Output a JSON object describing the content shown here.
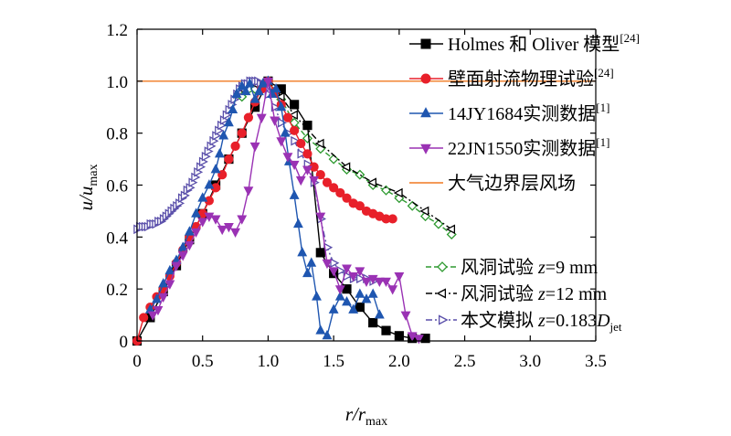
{
  "chart_data": {
    "type": "line",
    "title": "",
    "xlabel": {
      "main": "r/r",
      "sub": "max"
    },
    "ylabel": {
      "main": "u/u",
      "sub": "max"
    },
    "xlim": [
      0,
      3.5
    ],
    "ylim": [
      0,
      1.2
    ],
    "xticks": [
      0,
      0.5,
      1.0,
      1.5,
      2.0,
      2.5,
      3.0,
      3.5
    ],
    "xtick_labels": [
      "0",
      "0.5",
      "1.0",
      "1.5",
      "2.0",
      "2.5",
      "3.0",
      "3.5"
    ],
    "yticks": [
      0,
      0.2,
      0.4,
      0.6,
      0.8,
      1.0,
      1.2
    ],
    "ytick_labels": [
      "0",
      "0.2",
      "0.4",
      "0.6",
      "0.8",
      "1.0",
      "1.2"
    ],
    "grid": false,
    "legend_position": "top-right",
    "series": [
      {
        "name": "Holmes 和 Oliver 模型",
        "sup": "[24]",
        "color": "#000000",
        "marker": "square",
        "filled": true,
        "dash": "",
        "x": [
          0,
          0.1,
          0.2,
          0.3,
          0.4,
          0.5,
          0.6,
          0.7,
          0.8,
          0.9,
          1.0,
          1.1,
          1.2,
          1.3,
          1.4,
          1.5,
          1.6,
          1.7,
          1.8,
          1.9,
          2.0,
          2.1,
          2.2
        ],
        "y": [
          0,
          0.09,
          0.19,
          0.29,
          0.39,
          0.49,
          0.6,
          0.7,
          0.8,
          0.9,
          1.0,
          0.97,
          0.91,
          0.83,
          0.34,
          0.26,
          0.2,
          0.13,
          0.07,
          0.04,
          0.02,
          0.01,
          0.01
        ]
      },
      {
        "name": "壁面射流物理试验",
        "sup": "[24]",
        "color": "#e8202a",
        "marker": "circle",
        "filled": true,
        "dash": "",
        "x": [
          0,
          0.05,
          0.1,
          0.15,
          0.2,
          0.25,
          0.3,
          0.35,
          0.4,
          0.45,
          0.5,
          0.55,
          0.6,
          0.65,
          0.7,
          0.75,
          0.8,
          0.85,
          0.9,
          0.95,
          1.0,
          1.05,
          1.1,
          1.15,
          1.2,
          1.25,
          1.3,
          1.35,
          1.4,
          1.45,
          1.5,
          1.55,
          1.6,
          1.65,
          1.7,
          1.75,
          1.8,
          1.85,
          1.9,
          1.95
        ],
        "y": [
          0,
          0.09,
          0.13,
          0.17,
          0.2,
          0.25,
          0.3,
          0.35,
          0.4,
          0.44,
          0.49,
          0.54,
          0.59,
          0.64,
          0.7,
          0.75,
          0.8,
          0.86,
          0.92,
          0.97,
          1.0,
          0.96,
          0.91,
          0.86,
          0.81,
          0.76,
          0.72,
          0.67,
          0.64,
          0.61,
          0.59,
          0.57,
          0.55,
          0.53,
          0.52,
          0.5,
          0.49,
          0.48,
          0.47,
          0.47
        ]
      },
      {
        "name": "14JY1684实测数据",
        "sup": "[1]",
        "color": "#1f56b0",
        "marker": "triangle-up",
        "filled": true,
        "dash": "",
        "x": [
          0.1,
          0.15,
          0.2,
          0.25,
          0.3,
          0.35,
          0.4,
          0.45,
          0.5,
          0.55,
          0.6,
          0.63,
          0.66,
          0.7,
          0.73,
          0.76,
          0.8,
          0.83,
          0.86,
          0.9,
          0.93,
          0.96,
          1.0,
          1.03,
          1.06,
          1.1,
          1.13,
          1.16,
          1.2,
          1.23,
          1.26,
          1.3,
          1.33,
          1.37,
          1.4,
          1.45,
          1.5,
          1.55,
          1.6,
          1.65,
          1.7,
          1.75,
          1.8,
          1.85
        ],
        "y": [
          0.12,
          0.16,
          0.22,
          0.27,
          0.31,
          0.36,
          0.42,
          0.49,
          0.55,
          0.6,
          0.66,
          0.72,
          0.79,
          0.84,
          0.89,
          0.95,
          0.98,
          0.96,
          0.99,
          0.93,
          0.96,
          0.99,
          1.0,
          0.95,
          0.97,
          0.9,
          0.8,
          0.69,
          0.56,
          0.45,
          0.34,
          0.26,
          0.3,
          0.17,
          0.04,
          0.02,
          0.12,
          0.17,
          0.15,
          0.12,
          0.18,
          0.16,
          0.18,
          0.1
        ]
      },
      {
        "name": "22JN1550实测数据",
        "sup": "[1]",
        "color": "#9a32b4",
        "marker": "triangle-down",
        "filled": true,
        "dash": "",
        "x": [
          0.12,
          0.16,
          0.2,
          0.25,
          0.3,
          0.35,
          0.4,
          0.45,
          0.5,
          0.55,
          0.6,
          0.65,
          0.7,
          0.75,
          0.8,
          0.85,
          0.9,
          0.95,
          1.0,
          1.05,
          1.1,
          1.15,
          1.2,
          1.25,
          1.3,
          1.35,
          1.4,
          1.45,
          1.5,
          1.55,
          1.6,
          1.65,
          1.7,
          1.75,
          1.8,
          1.85,
          1.9,
          1.95,
          2.0,
          2.05,
          2.1,
          2.15
        ],
        "y": [
          0.1,
          0.12,
          0.17,
          0.22,
          0.29,
          0.33,
          0.37,
          0.42,
          0.46,
          0.48,
          0.47,
          0.43,
          0.44,
          0.42,
          0.47,
          0.58,
          0.75,
          0.86,
          1.0,
          0.85,
          0.77,
          0.71,
          0.68,
          0.62,
          0.66,
          0.62,
          0.48,
          0.3,
          0.27,
          0.2,
          0.28,
          0.25,
          0.27,
          0.23,
          0.24,
          0.23,
          0.23,
          0.2,
          0.25,
          0.1,
          0.02,
          0.01
        ]
      }
    ],
    "reference_lines": [
      {
        "name": "大气边界层风场",
        "y": 1.0,
        "color": "#f07820"
      }
    ],
    "series_secondary": [
      {
        "name_prefix": "风洞试验 ",
        "var": "z",
        "value": "=9 mm",
        "color": "#2e9a30",
        "marker": "diamond",
        "filled": false,
        "dash": "6,3",
        "x": [
          0.8,
          0.9,
          1.0,
          1.1,
          1.2,
          1.3,
          1.4,
          1.5,
          1.6,
          1.7,
          1.8,
          1.9,
          2.0,
          2.1,
          2.2,
          2.3,
          2.4
        ],
        "y": [
          0.94,
          0.97,
          1.0,
          0.93,
          0.84,
          0.78,
          0.74,
          0.7,
          0.66,
          0.64,
          0.6,
          0.58,
          0.55,
          0.52,
          0.48,
          0.45,
          0.41
        ]
      },
      {
        "name_prefix": "风洞试验 ",
        "var": "z",
        "value": "=12 mm",
        "color": "#000000",
        "marker": "triangle-left",
        "filled": false,
        "dash": "7,3,2,3",
        "x": [
          0.8,
          0.9,
          1.0,
          1.1,
          1.2,
          1.4,
          1.6,
          1.8,
          2.0,
          2.2,
          2.4
        ],
        "y": [
          0.97,
          0.99,
          1.0,
          0.94,
          0.87,
          0.76,
          0.67,
          0.61,
          0.57,
          0.5,
          0.43
        ]
      },
      {
        "name_prefix": "本文模拟 ",
        "var": "z",
        "value": "=0.183",
        "var2": "D",
        "var2_sub": "jet",
        "color": "#5a4faa",
        "marker": "triangle-right",
        "filled": false,
        "dash": "7,3,2,3",
        "x": [
          0,
          0.02,
          0.04,
          0.06,
          0.08,
          0.1,
          0.12,
          0.14,
          0.16,
          0.18,
          0.2,
          0.22,
          0.24,
          0.26,
          0.28,
          0.3,
          0.32,
          0.34,
          0.36,
          0.38,
          0.4,
          0.42,
          0.44,
          0.46,
          0.48,
          0.5,
          0.52,
          0.54,
          0.56,
          0.58,
          0.6,
          0.62,
          0.64,
          0.66,
          0.68,
          0.7,
          0.72,
          0.74,
          0.76,
          0.78,
          0.8,
          0.82,
          0.84,
          0.86,
          0.88,
          0.9,
          0.92,
          0.94,
          0.96,
          0.98,
          1.0,
          1.05,
          1.1,
          1.15,
          1.2,
          1.25,
          1.3,
          1.35,
          1.4,
          1.45,
          1.5,
          1.55,
          1.6,
          1.65,
          1.7,
          1.75,
          1.8
        ],
        "y": [
          0.43,
          0.44,
          0.44,
          0.44,
          0.44,
          0.45,
          0.45,
          0.45,
          0.46,
          0.46,
          0.47,
          0.48,
          0.49,
          0.5,
          0.51,
          0.52,
          0.53,
          0.55,
          0.56,
          0.58,
          0.59,
          0.61,
          0.63,
          0.65,
          0.67,
          0.69,
          0.71,
          0.73,
          0.75,
          0.77,
          0.79,
          0.81,
          0.83,
          0.85,
          0.87,
          0.89,
          0.91,
          0.93,
          0.95,
          0.97,
          0.98,
          0.99,
          0.99,
          1.0,
          1.0,
          1.0,
          1.0,
          0.99,
          0.98,
          0.97,
          0.95,
          0.9,
          0.84,
          0.8,
          0.77,
          0.72,
          0.68,
          0.61,
          0.47,
          0.36,
          0.3,
          0.27,
          0.25,
          0.24,
          0.24,
          0.24,
          0.23
        ]
      }
    ]
  }
}
